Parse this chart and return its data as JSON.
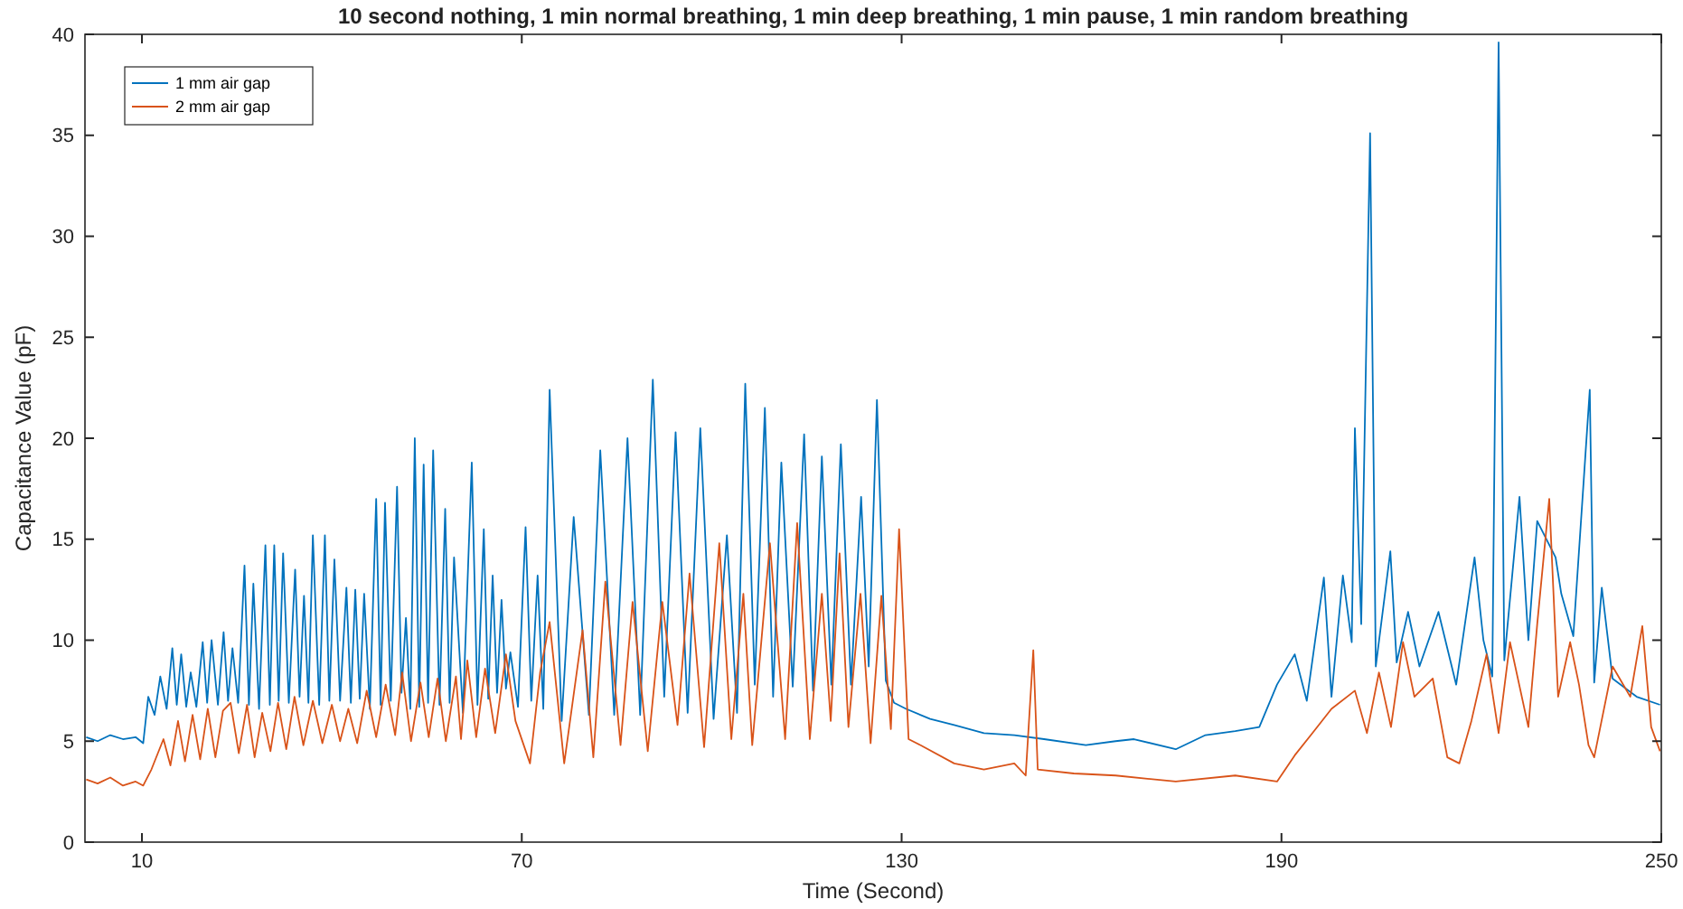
{
  "chart_data": {
    "type": "line",
    "title": "10 second nothing, 1 min normal breathing, 1 min deep breathing, 1 min pause, 1 min random breathing",
    "xlabel": "Time (Second)",
    "ylabel": "Capacitance Value (pF)",
    "xlim": [
      1,
      250
    ],
    "ylim": [
      0,
      40
    ],
    "xticks": [
      10,
      70,
      130,
      190,
      250
    ],
    "yticks": [
      0,
      5,
      10,
      15,
      20,
      25,
      30,
      35,
      40
    ],
    "grid": false,
    "legend": "top left",
    "line_style": "solid",
    "marker": "none",
    "series": [
      {
        "name": "1 mm air gap",
        "color": "#0072bd",
        "x": [
          1.2,
          3,
          5,
          7,
          9,
          10.2,
          11.0,
          12,
          12.9,
          13.9,
          14.8,
          15.5,
          16.2,
          17,
          17.7,
          18.6,
          19.6,
          20.3,
          21.0,
          22,
          22.9,
          23.6,
          24.3,
          25.2,
          26.2,
          26.9,
          27.6,
          28.5,
          29.5,
          30.2,
          30.9,
          31.6,
          32.3,
          33.2,
          34.2,
          34.9,
          35.6,
          36.3,
          37.0,
          38,
          38.9,
          39.6,
          40.4,
          41.3,
          42.3,
          43,
          43.7,
          44.4,
          45.1,
          46,
          47.0,
          47.7,
          48.4,
          49.3,
          50.3,
          51,
          51.7,
          52.4,
          53.1,
          53.8,
          54.5,
          55.2,
          56.0,
          57,
          57.9,
          58.6,
          59.3,
          60.7,
          62.1,
          63,
          64.0,
          64.7,
          65.4,
          66.1,
          66.8,
          67.5,
          68.2,
          69.4,
          70.6,
          71.5,
          72.5,
          73.4,
          74.4,
          76.3,
          78.2,
          80.6,
          82.4,
          84.6,
          86.7,
          88.7,
          90.7,
          92.5,
          94.3,
          96.2,
          98.2,
          100.3,
          102.4,
          104,
          105.3,
          106.8,
          108.4,
          109.7,
          111.0,
          112.8,
          114.6,
          116,
          117.4,
          118.9,
          120.4,
          122,
          123.6,
          124.8,
          126.1,
          127.5,
          128.8,
          130.7,
          134.5,
          138.3,
          143,
          147.8,
          152.5,
          159.1,
          163.8,
          166.7,
          173.3,
          178,
          182.7,
          186.5,
          189.3,
          192.1,
          194,
          196.7,
          197.9,
          199.7,
          201.1,
          201.6,
          202.6,
          204.0,
          204.9,
          207.2,
          208.2,
          210.0,
          211.8,
          214.8,
          217.6,
          220.5,
          221.9,
          223.3,
          224.3,
          225.2,
          227.6,
          229,
          230.4,
          233.3,
          234.2,
          236.1,
          238.7,
          239.4,
          240.6,
          242.3,
          246.1,
          249.8
        ],
        "values": [
          5.2,
          5.0,
          5.3,
          5.1,
          5.2,
          4.9,
          7.2,
          6.3,
          8.2,
          6.6,
          9.6,
          6.8,
          9.3,
          6.7,
          8.4,
          6.7,
          9.9,
          6.9,
          10.0,
          6.8,
          10.4,
          7.0,
          9.6,
          6.9,
          13.7,
          6.8,
          12.8,
          6.6,
          14.7,
          6.8,
          14.7,
          7.0,
          14.3,
          6.9,
          13.5,
          7.2,
          12.2,
          6.9,
          15.2,
          6.8,
          15.2,
          7.0,
          14.0,
          7.0,
          12.6,
          6.9,
          12.5,
          7.1,
          12.3,
          6.6,
          17.0,
          6.8,
          16.8,
          7.0,
          17.6,
          7.4,
          11.1,
          6.6,
          20.0,
          6.7,
          18.7,
          6.9,
          19.4,
          6.8,
          16.5,
          6.9,
          14.1,
          6.4,
          18.8,
          6.8,
          15.5,
          7.1,
          13.2,
          7.4,
          12.0,
          7.6,
          9.4,
          6.7,
          15.6,
          7.0,
          13.2,
          6.6,
          22.4,
          6.0,
          16.1,
          6.3,
          19.4,
          6.3,
          20.0,
          6.3,
          22.9,
          7.2,
          20.3,
          6.4,
          20.5,
          6.1,
          15.2,
          6.4,
          22.7,
          7.8,
          21.5,
          7.2,
          18.8,
          7.7,
          20.2,
          7.5,
          19.1,
          7.8,
          19.7,
          7.8,
          17.1,
          8.7,
          21.9,
          8.0,
          6.9,
          6.6,
          6.1,
          5.8,
          5.4,
          5.3,
          5.1,
          4.8,
          5.0,
          5.1,
          4.6,
          5.3,
          5.5,
          5.7,
          7.8,
          9.3,
          7.0,
          13.1,
          7.2,
          13.2,
          9.9,
          20.5,
          10.8,
          35.1,
          8.7,
          14.4,
          8.9,
          11.4,
          8.7,
          11.4,
          7.8,
          14.1,
          10.0,
          8.2,
          39.6,
          9.0,
          17.1,
          10.0,
          15.9,
          14.1,
          12.3,
          10.2,
          22.4,
          7.9,
          12.6,
          8.1,
          7.2,
          6.8
        ]
      },
      {
        "name": "2 mm air gap",
        "color": "#d95319",
        "x": [
          1.2,
          3,
          5,
          7,
          9,
          10.2,
          11.5,
          13.4,
          14.5,
          15.7,
          16.8,
          18,
          19.2,
          20.4,
          21.6,
          22.8,
          24,
          25.3,
          26.6,
          27.8,
          29,
          30.3,
          31.5,
          32.8,
          34.1,
          35.5,
          37,
          38.5,
          40,
          41.3,
          42.6,
          44,
          45.5,
          47,
          48.5,
          50,
          51.1,
          52.5,
          54,
          55.3,
          56.7,
          58,
          59.6,
          60.4,
          61.4,
          62.8,
          64.2,
          65.8,
          67.5,
          69,
          71.3,
          72.9,
          74.4,
          76.7,
          79.6,
          81.3,
          83.2,
          85.6,
          87.5,
          89.9,
          92.2,
          94.6,
          96.5,
          98.8,
          101.2,
          103.1,
          105,
          106.4,
          109.2,
          111.6,
          113.5,
          115.5,
          117.4,
          118.8,
          120.2,
          121.6,
          123.5,
          125.1,
          126.8,
          128.3,
          129.6,
          131.1,
          133,
          138.3,
          143,
          147.8,
          149.6,
          150.8,
          151.5,
          157.2,
          163.8,
          173.3,
          182.7,
          189.3,
          192.1,
          194.9,
          197.9,
          201.6,
          203.5,
          205.4,
          207.3,
          209.2,
          211,
          213.9,
          216.2,
          218.1,
          220,
          222.4,
          224.3,
          226.1,
          229,
          230.4,
          232.3,
          233.7,
          235.6,
          237,
          238.5,
          239.4,
          242.3,
          245.1,
          247,
          248.4,
          249.8
        ],
        "values": [
          3.1,
          2.9,
          3.2,
          2.8,
          3.0,
          2.8,
          3.6,
          5.1,
          3.8,
          6.0,
          4.0,
          6.3,
          4.1,
          6.6,
          4.2,
          6.5,
          6.9,
          4.4,
          6.8,
          4.2,
          6.4,
          4.5,
          6.9,
          4.6,
          7.2,
          4.8,
          7.0,
          4.9,
          6.8,
          5.0,
          6.6,
          4.9,
          7.5,
          5.2,
          7.8,
          5.3,
          8.4,
          5.0,
          7.9,
          5.2,
          8.1,
          5.0,
          8.2,
          5.1,
          9.0,
          5.2,
          8.6,
          5.4,
          9.3,
          6.0,
          3.9,
          8.4,
          10.9,
          3.9,
          10.5,
          4.2,
          12.9,
          4.8,
          11.9,
          4.5,
          11.9,
          5.8,
          13.3,
          4.7,
          14.8,
          5.1,
          12.3,
          4.8,
          14.8,
          5.1,
          15.8,
          5.1,
          12.3,
          6.0,
          14.3,
          5.7,
          12.3,
          4.9,
          12.2,
          5.6,
          15.5,
          5.1,
          4.8,
          3.9,
          3.6,
          3.9,
          3.3,
          9.5,
          3.6,
          3.4,
          3.3,
          3.0,
          3.3,
          3.0,
          4.3,
          5.4,
          6.6,
          7.5,
          5.4,
          8.4,
          5.7,
          9.9,
          7.2,
          8.1,
          4.2,
          3.9,
          6.0,
          9.3,
          5.4,
          9.9,
          5.7,
          10.8,
          17.0,
          7.2,
          9.9,
          7.8,
          4.8,
          4.2,
          8.7,
          7.2,
          10.7,
          5.7,
          4.5
        ]
      }
    ]
  }
}
